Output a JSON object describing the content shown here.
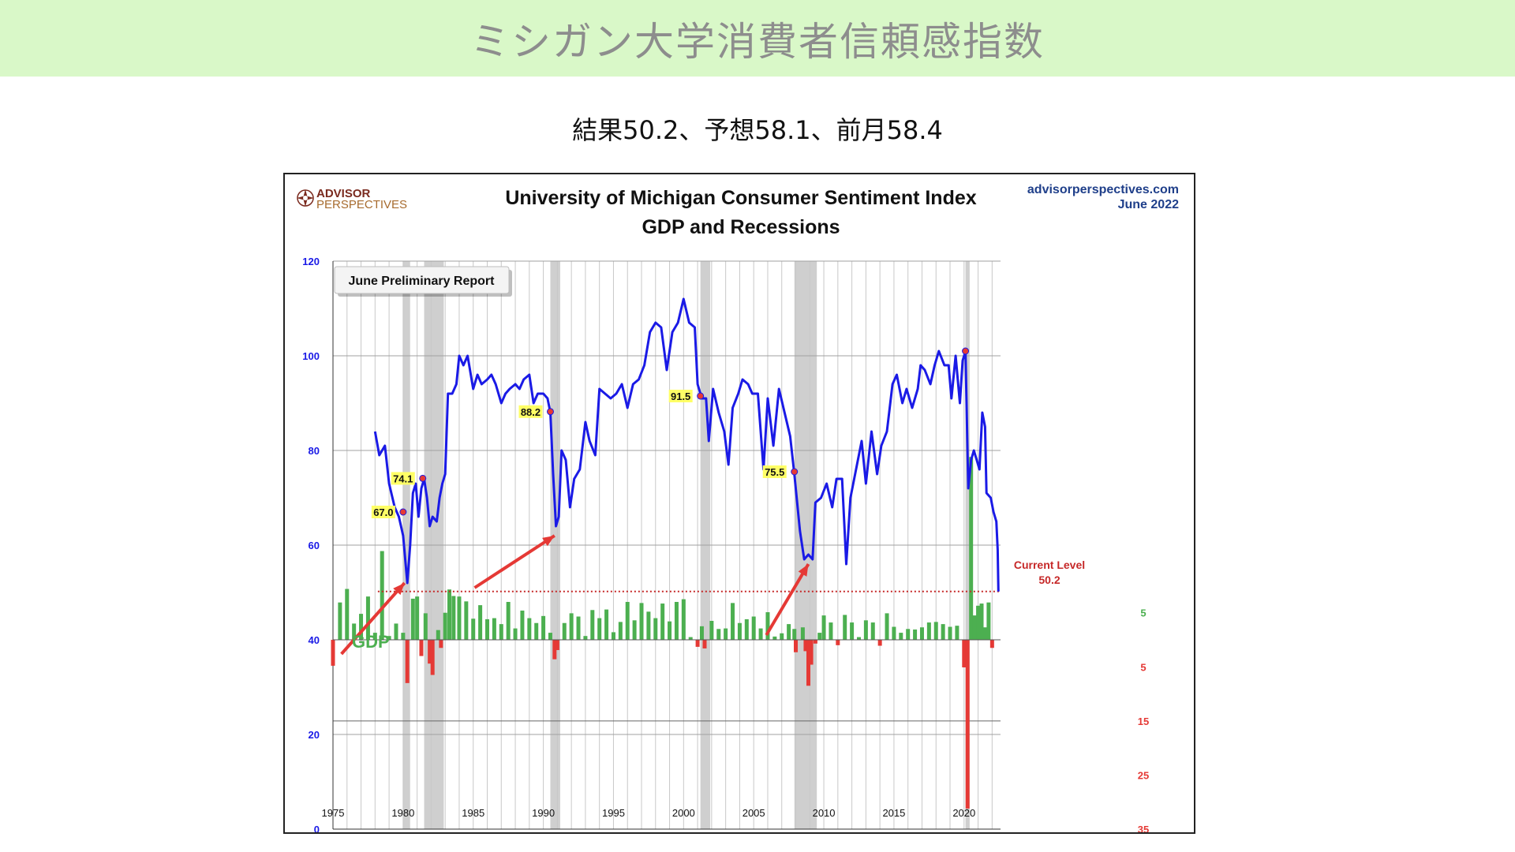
{
  "page": {
    "banner_title": "ミシガン大学消費者信頼感指数",
    "subtitle": "結果50.2、予想58.1、前月58.4"
  },
  "chart_data": {
    "type": "line",
    "title": "University of Michigan Consumer Sentiment Index",
    "subtitle": "GDP and Recessions",
    "source": "advisorperspectives.com",
    "date_label": "June 2022",
    "logo_text": [
      "ADVISOR",
      "PERSPECTIVES"
    ],
    "report_label": "June Preliminary Report",
    "gdp_label": "GDP",
    "current_level_label": "Current Level",
    "current_level_value": "50.2",
    "current_level": 50.2,
    "xlim": [
      1975,
      2022.6
    ],
    "ylim": [
      0,
      120
    ],
    "x_ticks": [
      "1975",
      "1980",
      "1985",
      "1990",
      "1995",
      "2000",
      "2005",
      "2010",
      "2015",
      "2020"
    ],
    "y_ticks_left": [
      "0",
      "20",
      "40",
      "60",
      "80",
      "100",
      "120"
    ],
    "gdp_axis_ticks": [
      "5",
      "5",
      "15",
      "25",
      "35"
    ],
    "grid": true,
    "colors": {
      "sentiment": "#1a1ae6",
      "gdp_positive": "#4caf50",
      "gdp_negative": "#e53935",
      "recession": "#cfcfcf",
      "arrow": "#e53935",
      "peak_marker": "#e53935",
      "label_bg": "#ffff66",
      "current_level": "#c62828"
    },
    "recessions": [
      [
        1980.0,
        1980.5
      ],
      [
        1981.5,
        1982.9
      ],
      [
        1990.5,
        1991.2
      ],
      [
        2001.2,
        2001.9
      ],
      [
        2007.9,
        2009.5
      ],
      [
        2020.1,
        2020.4
      ]
    ],
    "series": [
      {
        "name": "Consumer Sentiment",
        "points": [
          [
            1978.0,
            84
          ],
          [
            1978.3,
            79
          ],
          [
            1978.7,
            81
          ],
          [
            1979.0,
            73
          ],
          [
            1979.4,
            68
          ],
          [
            1979.7,
            66
          ],
          [
            1980.0,
            62
          ],
          [
            1980.3,
            52
          ],
          [
            1980.5,
            60
          ],
          [
            1980.7,
            71
          ],
          [
            1980.9,
            73
          ],
          [
            1981.1,
            66
          ],
          [
            1981.3,
            72
          ],
          [
            1981.5,
            74
          ],
          [
            1981.7,
            70
          ],
          [
            1981.9,
            64
          ],
          [
            1982.1,
            66
          ],
          [
            1982.4,
            65
          ],
          [
            1982.6,
            70
          ],
          [
            1982.8,
            73
          ],
          [
            1983.0,
            75
          ],
          [
            1983.2,
            92
          ],
          [
            1983.5,
            92
          ],
          [
            1983.8,
            94
          ],
          [
            1984.0,
            100
          ],
          [
            1984.3,
            98
          ],
          [
            1984.6,
            100
          ],
          [
            1985.0,
            93
          ],
          [
            1985.3,
            96
          ],
          [
            1985.6,
            94
          ],
          [
            1986.0,
            95
          ],
          [
            1986.3,
            96
          ],
          [
            1986.6,
            94
          ],
          [
            1987.0,
            90
          ],
          [
            1987.3,
            92
          ],
          [
            1987.6,
            93
          ],
          [
            1988.0,
            94
          ],
          [
            1988.3,
            93
          ],
          [
            1988.6,
            95
          ],
          [
            1989.0,
            96
          ],
          [
            1989.3,
            90
          ],
          [
            1989.6,
            92
          ],
          [
            1990.0,
            92
          ],
          [
            1990.3,
            91
          ],
          [
            1990.5,
            88
          ],
          [
            1990.7,
            75
          ],
          [
            1990.9,
            64
          ],
          [
            1991.1,
            66
          ],
          [
            1991.3,
            80
          ],
          [
            1991.6,
            78
          ],
          [
            1991.9,
            68
          ],
          [
            1992.2,
            74
          ],
          [
            1992.6,
            76
          ],
          [
            1993.0,
            86
          ],
          [
            1993.3,
            82
          ],
          [
            1993.7,
            79
          ],
          [
            1994.0,
            93
          ],
          [
            1994.4,
            92
          ],
          [
            1994.8,
            91
          ],
          [
            1995.2,
            92
          ],
          [
            1995.6,
            94
          ],
          [
            1996.0,
            89
          ],
          [
            1996.4,
            94
          ],
          [
            1996.8,
            95
          ],
          [
            1997.2,
            98
          ],
          [
            1997.6,
            105
          ],
          [
            1998.0,
            107
          ],
          [
            1998.4,
            106
          ],
          [
            1998.8,
            97
          ],
          [
            1999.2,
            105
          ],
          [
            1999.6,
            107
          ],
          [
            2000.0,
            112
          ],
          [
            2000.4,
            107
          ],
          [
            2000.8,
            106
          ],
          [
            2001.0,
            94
          ],
          [
            2001.3,
            91
          ],
          [
            2001.6,
            91
          ],
          [
            2001.8,
            82
          ],
          [
            2002.1,
            93
          ],
          [
            2002.5,
            88
          ],
          [
            2002.9,
            84
          ],
          [
            2003.2,
            77
          ],
          [
            2003.5,
            89
          ],
          [
            2003.9,
            92
          ],
          [
            2004.2,
            95
          ],
          [
            2004.6,
            94
          ],
          [
            2004.9,
            92
          ],
          [
            2005.3,
            92
          ],
          [
            2005.7,
            76
          ],
          [
            2006.0,
            91
          ],
          [
            2006.4,
            81
          ],
          [
            2006.8,
            93
          ],
          [
            2007.2,
            88
          ],
          [
            2007.6,
            83
          ],
          [
            2007.9,
            75
          ],
          [
            2008.3,
            63
          ],
          [
            2008.6,
            57
          ],
          [
            2008.9,
            58
          ],
          [
            2009.2,
            57
          ],
          [
            2009.4,
            69
          ],
          [
            2009.8,
            70
          ],
          [
            2010.2,
            73
          ],
          [
            2010.6,
            68
          ],
          [
            2010.9,
            74
          ],
          [
            2011.3,
            74
          ],
          [
            2011.6,
            56
          ],
          [
            2011.9,
            70
          ],
          [
            2012.3,
            76
          ],
          [
            2012.7,
            82
          ],
          [
            2013.0,
            73
          ],
          [
            2013.4,
            84
          ],
          [
            2013.8,
            75
          ],
          [
            2014.1,
            81
          ],
          [
            2014.5,
            84
          ],
          [
            2014.9,
            94
          ],
          [
            2015.2,
            96
          ],
          [
            2015.6,
            90
          ],
          [
            2015.9,
            93
          ],
          [
            2016.3,
            89
          ],
          [
            2016.7,
            93
          ],
          [
            2016.9,
            98
          ],
          [
            2017.2,
            97
          ],
          [
            2017.6,
            94
          ],
          [
            2017.9,
            98
          ],
          [
            2018.2,
            101
          ],
          [
            2018.6,
            98
          ],
          [
            2018.9,
            98
          ],
          [
            2019.1,
            91
          ],
          [
            2019.4,
            100
          ],
          [
            2019.7,
            90
          ],
          [
            2019.9,
            99
          ],
          [
            2020.1,
            101
          ],
          [
            2020.3,
            72
          ],
          [
            2020.5,
            78
          ],
          [
            2020.7,
            80
          ],
          [
            2020.9,
            78
          ],
          [
            2021.1,
            76
          ],
          [
            2021.3,
            88
          ],
          [
            2021.5,
            85
          ],
          [
            2021.6,
            71
          ],
          [
            2021.9,
            70
          ],
          [
            2022.1,
            67
          ],
          [
            2022.3,
            65
          ],
          [
            2022.4,
            59
          ],
          [
            2022.45,
            50.2
          ]
        ]
      },
      {
        "name": "GDP",
        "bars": [
          [
            1975.0,
            -4.8
          ],
          [
            1975.5,
            6.9
          ],
          [
            1976.0,
            9.4
          ],
          [
            1976.5,
            3.0
          ],
          [
            1977.0,
            4.8
          ],
          [
            1977.5,
            8.0
          ],
          [
            1978.0,
            1.3
          ],
          [
            1978.5,
            16.4
          ],
          [
            1979.0,
            0.7
          ],
          [
            1979.5,
            3.0
          ],
          [
            1980.0,
            1.3
          ],
          [
            1980.3,
            -8.0
          ],
          [
            1980.7,
            7.6
          ],
          [
            1981.0,
            8.0
          ],
          [
            1981.3,
            -3.0
          ],
          [
            1981.6,
            4.9
          ],
          [
            1981.9,
            -4.4
          ],
          [
            1982.1,
            -6.5
          ],
          [
            1982.5,
            1.8
          ],
          [
            1982.7,
            -1.5
          ],
          [
            1983.0,
            5.0
          ],
          [
            1983.3,
            9.3
          ],
          [
            1983.6,
            8.1
          ],
          [
            1984.0,
            8.0
          ],
          [
            1984.5,
            7.1
          ],
          [
            1985.0,
            3.9
          ],
          [
            1985.5,
            6.4
          ],
          [
            1986.0,
            3.8
          ],
          [
            1986.5,
            4.0
          ],
          [
            1987.0,
            2.9
          ],
          [
            1987.5,
            7.0
          ],
          [
            1988.0,
            2.1
          ],
          [
            1988.5,
            5.4
          ],
          [
            1989.0,
            4.0
          ],
          [
            1989.5,
            3.1
          ],
          [
            1990.0,
            4.4
          ],
          [
            1990.5,
            1.3
          ],
          [
            1990.8,
            -3.6
          ],
          [
            1991.0,
            -1.9
          ],
          [
            1991.5,
            3.1
          ],
          [
            1992.0,
            4.9
          ],
          [
            1992.5,
            4.3
          ],
          [
            1993.0,
            0.7
          ],
          [
            1993.5,
            5.5
          ],
          [
            1994.0,
            4.0
          ],
          [
            1994.5,
            5.6
          ],
          [
            1995.0,
            1.4
          ],
          [
            1995.5,
            3.3
          ],
          [
            1996.0,
            7.0
          ],
          [
            1996.5,
            3.6
          ],
          [
            1997.0,
            6.8
          ],
          [
            1997.5,
            5.2
          ],
          [
            1998.0,
            4.0
          ],
          [
            1998.5,
            6.7
          ],
          [
            1999.0,
            3.4
          ],
          [
            1999.5,
            7.0
          ],
          [
            2000.0,
            7.5
          ],
          [
            2000.5,
            0.5
          ],
          [
            2001.0,
            -1.3
          ],
          [
            2001.3,
            2.5
          ],
          [
            2001.5,
            -1.6
          ],
          [
            2002.0,
            3.5
          ],
          [
            2002.5,
            2.0
          ],
          [
            2003.0,
            2.1
          ],
          [
            2003.5,
            6.8
          ],
          [
            2004.0,
            3.1
          ],
          [
            2004.5,
            3.8
          ],
          [
            2005.0,
            4.3
          ],
          [
            2005.5,
            2.1
          ],
          [
            2006.0,
            5.1
          ],
          [
            2006.5,
            0.6
          ],
          [
            2007.0,
            1.2
          ],
          [
            2007.5,
            2.9
          ],
          [
            2007.9,
            2.0
          ],
          [
            2008.0,
            -2.3
          ],
          [
            2008.5,
            2.3
          ],
          [
            2008.7,
            -2.1
          ],
          [
            2008.9,
            -8.5
          ],
          [
            2009.1,
            -4.6
          ],
          [
            2009.4,
            -0.7
          ],
          [
            2009.7,
            1.3
          ],
          [
            2010.0,
            4.5
          ],
          [
            2010.5,
            3.2
          ],
          [
            2011.0,
            -1.0
          ],
          [
            2011.5,
            4.6
          ],
          [
            2012.0,
            3.2
          ],
          [
            2012.5,
            0.5
          ],
          [
            2013.0,
            3.6
          ],
          [
            2013.5,
            3.2
          ],
          [
            2014.0,
            -1.1
          ],
          [
            2014.5,
            4.9
          ],
          [
            2015.0,
            2.4
          ],
          [
            2015.5,
            1.3
          ],
          [
            2016.0,
            2.0
          ],
          [
            2016.5,
            1.9
          ],
          [
            2017.0,
            2.3
          ],
          [
            2017.5,
            3.2
          ],
          [
            2018.0,
            3.3
          ],
          [
            2018.5,
            2.9
          ],
          [
            2019.0,
            2.4
          ],
          [
            2019.5,
            2.6
          ],
          [
            2020.0,
            -5.1
          ],
          [
            2020.25,
            -31.2
          ],
          [
            2020.5,
            33.8
          ],
          [
            2020.75,
            4.5
          ],
          [
            2021.0,
            6.3
          ],
          [
            2021.25,
            6.7
          ],
          [
            2021.5,
            2.3
          ],
          [
            2021.75,
            6.9
          ],
          [
            2022.0,
            -1.5
          ]
        ]
      }
    ],
    "annotations": [
      {
        "year": 1980.0,
        "value": 67.0,
        "label": "67.0"
      },
      {
        "year": 1981.4,
        "value": 74.1,
        "label": "74.1"
      },
      {
        "year": 1990.5,
        "value": 88.2,
        "label": "88.2"
      },
      {
        "year": 2001.2,
        "value": 91.5,
        "label": "91.5"
      },
      {
        "year": 2007.9,
        "value": 75.5,
        "label": "75.5"
      },
      {
        "year": 2020.1,
        "value": 101.0,
        "label": ""
      }
    ],
    "arrows": [
      {
        "from": [
          1975.6,
          37
        ],
        "to": [
          1980.1,
          52
        ]
      },
      {
        "from": [
          1985.1,
          51
        ],
        "to": [
          1990.8,
          62
        ]
      },
      {
        "from": [
          2005.9,
          41
        ],
        "to": [
          2008.9,
          56
        ]
      }
    ]
  }
}
